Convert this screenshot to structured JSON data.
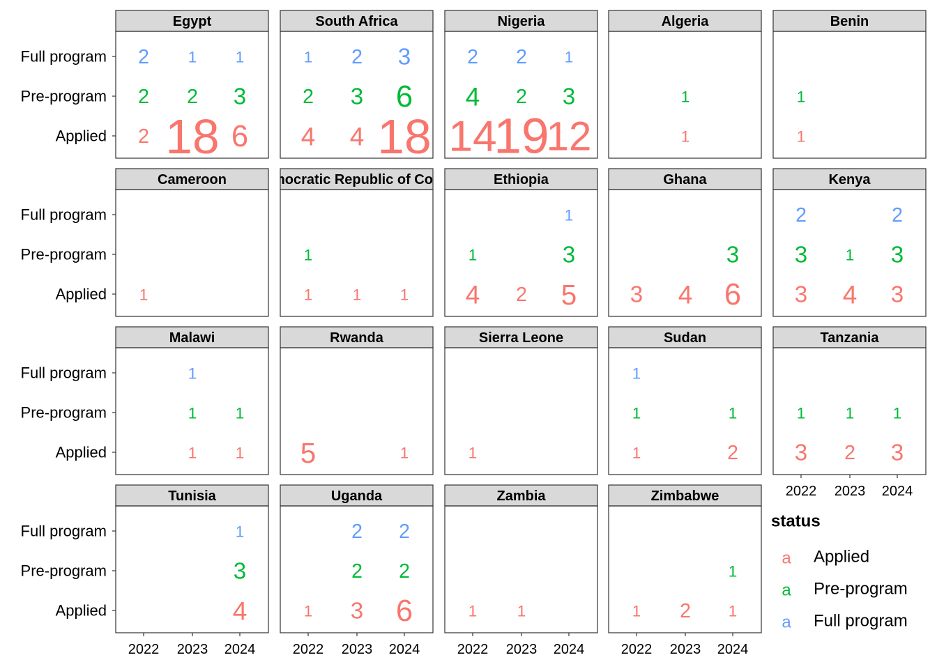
{
  "chart_data": {
    "type": "text-grid",
    "categories": [
      "2022",
      "2023",
      "2024"
    ],
    "legend_title": "status",
    "legend_symbol": "a",
    "series": [
      {
        "name": "Applied",
        "color": "#F8766D"
      },
      {
        "name": "Pre-program",
        "color": "#00BA38"
      },
      {
        "name": "Full program",
        "color": "#619CFF"
      }
    ],
    "facets": [
      {
        "title": "Egypt",
        "values": [
          [
            2,
            18,
            6
          ],
          [
            2,
            2,
            3
          ],
          [
            2,
            1,
            1
          ]
        ]
      },
      {
        "title": "South Africa",
        "values": [
          [
            4,
            4,
            18
          ],
          [
            2,
            3,
            6
          ],
          [
            1,
            2,
            3
          ]
        ]
      },
      {
        "title": "Nigeria",
        "values": [
          [
            14,
            19,
            12
          ],
          [
            4,
            2,
            3
          ],
          [
            2,
            2,
            1
          ]
        ]
      },
      {
        "title": "Algeria",
        "values": [
          [
            null,
            1,
            null
          ],
          [
            null,
            1,
            null
          ],
          [
            null,
            null,
            null
          ]
        ]
      },
      {
        "title": "Benin",
        "values": [
          [
            1,
            null,
            null
          ],
          [
            1,
            null,
            null
          ],
          [
            null,
            null,
            null
          ]
        ]
      },
      {
        "title": "Cameroon",
        "values": [
          [
            1,
            null,
            null
          ],
          [
            null,
            null,
            null
          ],
          [
            null,
            null,
            null
          ]
        ]
      },
      {
        "title": "Democratic Republic of Congo",
        "values": [
          [
            1,
            1,
            1
          ],
          [
            1,
            null,
            null
          ],
          [
            null,
            null,
            null
          ]
        ]
      },
      {
        "title": "Ethiopia",
        "values": [
          [
            4,
            2,
            5
          ],
          [
            1,
            null,
            3
          ],
          [
            null,
            null,
            1
          ]
        ]
      },
      {
        "title": "Ghana",
        "values": [
          [
            3,
            4,
            6
          ],
          [
            null,
            null,
            3
          ],
          [
            null,
            null,
            null
          ]
        ]
      },
      {
        "title": "Kenya",
        "values": [
          [
            3,
            4,
            3
          ],
          [
            3,
            1,
            3
          ],
          [
            2,
            null,
            2
          ]
        ]
      },
      {
        "title": "Malawi",
        "values": [
          [
            null,
            1,
            1
          ],
          [
            null,
            1,
            1
          ],
          [
            null,
            1,
            null
          ]
        ]
      },
      {
        "title": "Rwanda",
        "values": [
          [
            5,
            null,
            1
          ],
          [
            null,
            null,
            null
          ],
          [
            null,
            null,
            null
          ]
        ]
      },
      {
        "title": "Sierra Leone",
        "values": [
          [
            1,
            null,
            null
          ],
          [
            null,
            null,
            null
          ],
          [
            null,
            null,
            null
          ]
        ]
      },
      {
        "title": "Sudan",
        "values": [
          [
            1,
            null,
            2
          ],
          [
            1,
            null,
            1
          ],
          [
            1,
            null,
            null
          ]
        ]
      },
      {
        "title": "Tanzania",
        "values": [
          [
            3,
            2,
            3
          ],
          [
            1,
            1,
            1
          ],
          [
            null,
            null,
            null
          ]
        ]
      },
      {
        "title": "Tunisia",
        "values": [
          [
            null,
            null,
            4
          ],
          [
            null,
            null,
            3
          ],
          [
            null,
            null,
            1
          ]
        ]
      },
      {
        "title": "Uganda",
        "values": [
          [
            1,
            3,
            6
          ],
          [
            null,
            2,
            2
          ],
          [
            null,
            2,
            2
          ]
        ]
      },
      {
        "title": "Zambia",
        "values": [
          [
            1,
            1,
            null
          ],
          [
            null,
            null,
            null
          ],
          [
            null,
            null,
            null
          ]
        ]
      },
      {
        "title": "Zimbabwe",
        "values": [
          [
            1,
            2,
            1
          ],
          [
            null,
            null,
            1
          ],
          [
            null,
            null,
            null
          ]
        ]
      }
    ]
  }
}
